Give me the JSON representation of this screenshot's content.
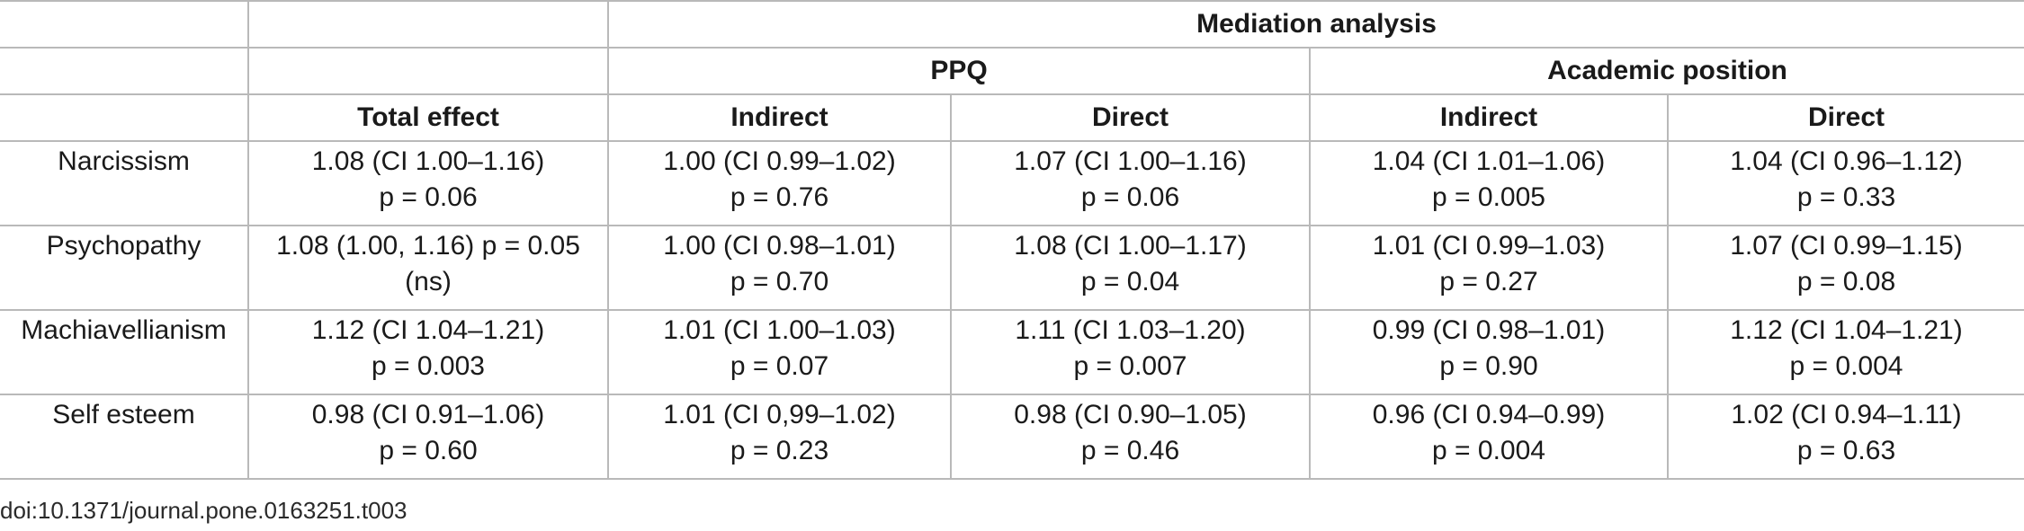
{
  "table": {
    "header_group": "Mediation analysis",
    "subgroups": [
      "PPQ",
      "Academic position"
    ],
    "columns": [
      "Total effect",
      "Indirect",
      "Direct",
      "Indirect",
      "Direct"
    ],
    "rows": [
      {
        "label": "Narcissism",
        "cells": [
          [
            "1.08 (CI 1.00–1.16)",
            "p = 0.06"
          ],
          [
            "1.00 (CI 0.99–1.02)",
            "p = 0.76"
          ],
          [
            "1.07 (CI 1.00–1.16)",
            "p = 0.06"
          ],
          [
            "1.04 (CI 1.01–1.06)",
            "p = 0.005"
          ],
          [
            "1.04 (CI 0.96–1.12)",
            "p = 0.33"
          ]
        ]
      },
      {
        "label": "Psychopathy",
        "cells": [
          [
            "1.08 (1.00, 1.16) p = 0.05",
            "(ns)"
          ],
          [
            "1.00 (CI 0.98–1.01)",
            "p = 0.70"
          ],
          [
            "1.08 (CI 1.00–1.17)",
            "p = 0.04"
          ],
          [
            "1.01 (CI 0.99–1.03)",
            "p = 0.27"
          ],
          [
            "1.07 (CI 0.99–1.15)",
            "p = 0.08"
          ]
        ]
      },
      {
        "label": "Machiavellianism",
        "cells": [
          [
            "1.12 (CI 1.04–1.21)",
            "p = 0.003"
          ],
          [
            "1.01 (CI 1.00–1.03)",
            "p = 0.07"
          ],
          [
            "1.11 (CI 1.03–1.20)",
            "p = 0.007"
          ],
          [
            "0.99 (CI 0.98–1.01)",
            "p = 0.90"
          ],
          [
            "1.12 (CI 1.04–1.21)",
            "p = 0.004"
          ]
        ]
      },
      {
        "label": "Self esteem",
        "cells": [
          [
            "0.98 (CI 0.91–1.06)",
            "p = 0.60"
          ],
          [
            "1.01 (CI 0,99–1.02)",
            "p = 0.23"
          ],
          [
            "0.98 (CI 0.90–1.05)",
            "p = 0.46"
          ],
          [
            "0.96 (CI 0.94–0.99)",
            "p = 0.004"
          ],
          [
            "1.02 (CI 0.94–1.11)",
            "p = 0.63"
          ]
        ]
      }
    ]
  },
  "doi": "doi:10.1371/journal.pone.0163251.t003"
}
